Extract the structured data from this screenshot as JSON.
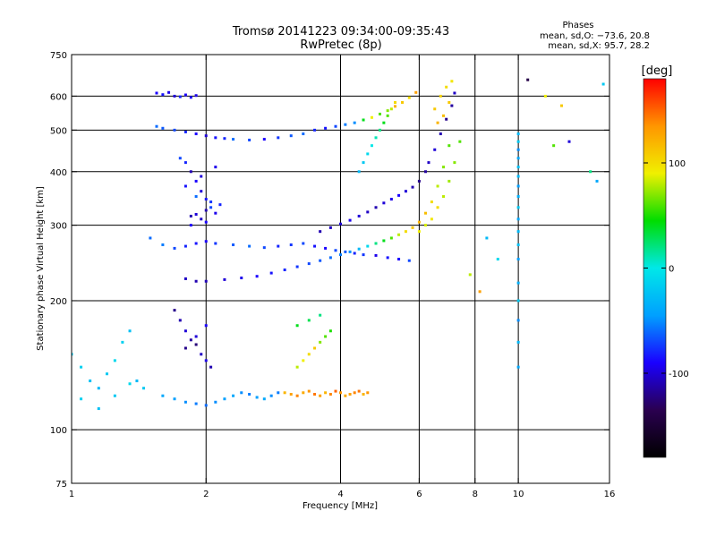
{
  "chart_data": {
    "type": "scatter",
    "title": "Tromsø 20141223 09:34:00-09:35:43",
    "subtitle": "RwPretec (8p)",
    "stats": {
      "heading": "Phases",
      "line_o": "mean, sd,O: −73.6, 20.8",
      "line_x": "mean, sd,X:  95.7, 28.2"
    },
    "xlabel": "Frequency [MHz]",
    "ylabel": "Stationary phase Virtual Height [km]",
    "x_scale": "log",
    "y_scale": "log",
    "xlim": [
      1,
      16
    ],
    "ylim": [
      75,
      750
    ],
    "x_ticks": [
      1,
      2,
      4,
      6,
      8,
      10,
      16
    ],
    "y_ticks": [
      75,
      100,
      200,
      300,
      400,
      500,
      600,
      750
    ],
    "grid_x": [
      2,
      4,
      6,
      8,
      10
    ],
    "grid_y": [
      100,
      200,
      300,
      400,
      500,
      600
    ],
    "grid": true,
    "colorbar": {
      "label": "[deg]",
      "range": [
        -180,
        180
      ],
      "ticks": [
        100,
        0,
        -100
      ],
      "colormap": [
        "#000000",
        "#2a0050",
        "#1a00ff",
        "#00a0ff",
        "#00e8e8",
        "#00dd00",
        "#f0f000",
        "#ff9600",
        "#ff0000"
      ]
    },
    "series": [
      {
        "x": [
          1.55,
          1.6,
          1.65,
          1.7,
          1.75,
          1.8,
          1.85,
          1.9
        ],
        "y": [
          610,
          605,
          612,
          600,
          598,
          604,
          596,
          602
        ],
        "phase": [
          -90,
          -85,
          -95,
          -100,
          -80,
          -92,
          -88,
          -96
        ]
      },
      {
        "x": [
          1.55,
          1.6,
          1.7,
          1.8,
          1.9,
          2.0,
          2.1,
          2.2,
          2.3,
          2.5,
          2.7,
          2.9,
          3.1,
          3.3,
          3.5,
          3.7,
          3.9,
          4.1,
          4.3,
          4.5,
          4.7,
          4.9,
          5.1,
          5.3,
          5.5,
          5.7,
          5.9
        ],
        "y": [
          510,
          505,
          500,
          495,
          490,
          485,
          480,
          478,
          476,
          474,
          476,
          480,
          485,
          490,
          500,
          505,
          510,
          515,
          520,
          528,
          535,
          545,
          555,
          568,
          580,
          595,
          612
        ],
        "phase": [
          -60,
          -65,
          -70,
          -80,
          -90,
          -100,
          -85,
          -80,
          -60,
          -70,
          -90,
          -75,
          -65,
          -60,
          -80,
          -85,
          -70,
          -55,
          -50,
          40,
          90,
          60,
          70,
          120,
          110,
          100,
          130
        ]
      },
      {
        "x": [
          1.8,
          1.85,
          1.9,
          1.95,
          2.0,
          2.05,
          2.1,
          1.85,
          1.95,
          2.0,
          2.05,
          1.9,
          1.8,
          1.95,
          2.1,
          1.75,
          2.0,
          2.15,
          1.85,
          1.9
        ],
        "y": [
          420,
          400,
          380,
          360,
          345,
          330,
          320,
          315,
          310,
          305,
          340,
          350,
          370,
          390,
          410,
          430,
          325,
          335,
          300,
          318
        ],
        "phase": [
          -80,
          -110,
          -90,
          -100,
          -85,
          -70,
          -95,
          -110,
          -105,
          -90,
          -75,
          -60,
          -85,
          -100,
          -95,
          -70,
          -110,
          -80,
          -90,
          -100
        ]
      },
      {
        "x": [
          1.5,
          1.6,
          1.7,
          1.8,
          1.9,
          2.0,
          2.1,
          2.3,
          2.5,
          2.7,
          2.9,
          3.1,
          3.3,
          3.5,
          3.7,
          3.9,
          4.1,
          4.3,
          4.5,
          4.8,
          5.1,
          5.4,
          5.7
        ],
        "y": [
          280,
          270,
          265,
          268,
          272,
          275,
          272,
          270,
          268,
          266,
          268,
          270,
          272,
          268,
          265,
          262,
          260,
          258,
          256,
          255,
          252,
          250,
          248
        ],
        "phase": [
          -60,
          -55,
          -70,
          -80,
          -85,
          -90,
          -75,
          -65,
          -60,
          -70,
          -80,
          -75,
          -70,
          -85,
          -90,
          -70,
          -65,
          -80,
          -75,
          -95,
          -85,
          -90,
          -70
        ]
      },
      {
        "x": [
          1.8,
          1.9,
          2.0,
          2.2,
          2.4,
          2.6,
          2.8,
          3.0,
          3.2,
          3.4,
          3.6,
          3.8,
          4.0,
          4.2,
          4.4,
          4.6,
          4.8,
          5.0,
          5.2,
          5.4,
          5.6,
          5.8,
          6.0,
          6.2,
          6.4,
          6.6,
          6.8,
          7.0
        ],
        "y": [
          225,
          222,
          222,
          224,
          226,
          228,
          232,
          236,
          240,
          244,
          248,
          252,
          256,
          260,
          264,
          268,
          272,
          276,
          280,
          285,
          290,
          296,
          305,
          320,
          340,
          370,
          410,
          460
        ],
        "phase": [
          -105,
          -110,
          -108,
          -100,
          -95,
          -90,
          -85,
          -80,
          -75,
          -70,
          -65,
          -60,
          -55,
          -50,
          -30,
          -10,
          20,
          40,
          60,
          80,
          100,
          110,
          120,
          115,
          100,
          80,
          70,
          60
        ]
      },
      {
        "x": [
          3.6,
          3.8,
          4.0,
          4.2,
          4.4,
          4.6,
          4.8,
          5.0,
          5.2,
          5.4,
          5.6,
          5.8,
          6.0,
          6.2,
          6.3,
          6.5,
          6.7,
          6.9,
          7.1,
          7.2
        ],
        "y": [
          290,
          296,
          302,
          308,
          315,
          322,
          330,
          338,
          345,
          352,
          360,
          368,
          380,
          400,
          420,
          450,
          490,
          530,
          570,
          610
        ],
        "phase": [
          -110,
          -105,
          -100,
          -95,
          -100,
          -105,
          -110,
          -100,
          -95,
          -90,
          -100,
          -110,
          -120,
          -115,
          -105,
          -100,
          -110,
          -120,
          -115,
          -105
        ]
      },
      {
        "x": [
          6.0,
          6.2,
          6.4,
          6.6,
          6.8,
          7.0,
          7.2,
          7.4,
          6.5,
          6.7,
          6.9,
          7.1,
          6.6,
          6.8,
          7.0
        ],
        "y": [
          290,
          300,
          310,
          330,
          350,
          380,
          420,
          470,
          560,
          600,
          630,
          650,
          520,
          540,
          580
        ],
        "phase": [
          90,
          85,
          95,
          100,
          80,
          75,
          70,
          60,
          110,
          105,
          100,
          95,
          120,
          115,
          110
        ]
      },
      {
        "x": [
          3.0,
          3.1,
          3.2,
          3.3,
          3.4,
          3.5,
          3.6,
          3.7,
          3.8,
          3.9,
          4.0,
          4.1,
          4.2,
          4.3,
          4.4,
          4.5,
          4.6
        ],
        "y": [
          122,
          121,
          120,
          122,
          123,
          121,
          120,
          122,
          121,
          123,
          122,
          120,
          121,
          122,
          123,
          121,
          122
        ],
        "phase": [
          120,
          130,
          140,
          125,
          135,
          145,
          130,
          120,
          140,
          150,
          135,
          125,
          130,
          140,
          145,
          120,
          135
        ]
      },
      {
        "x": [
          1.6,
          1.7,
          1.8,
          1.9,
          2.0,
          2.1,
          2.2,
          2.3,
          2.4,
          2.5,
          2.6,
          2.7,
          2.8,
          2.9
        ],
        "y": [
          120,
          118,
          116,
          115,
          114,
          116,
          118,
          120,
          122,
          121,
          119,
          118,
          120,
          122
        ],
        "phase": [
          -40,
          -45,
          -50,
          -55,
          -60,
          -50,
          -45,
          -40,
          -50,
          -55,
          -45,
          -40,
          -50,
          -55
        ]
      },
      {
        "x": [
          1.7,
          1.75,
          1.8,
          1.85,
          1.9,
          1.95,
          2.0,
          2.05,
          1.8,
          1.9,
          2.0
        ],
        "y": [
          190,
          180,
          170,
          162,
          158,
          150,
          145,
          140,
          155,
          165,
          175
        ],
        "phase": [
          -120,
          -110,
          -100,
          -115,
          -125,
          -105,
          -95,
          -110,
          -120,
          -100,
          -90
        ]
      },
      {
        "x": [
          1.0,
          1.05,
          1.1,
          1.15,
          1.2,
          1.25,
          1.3,
          1.35,
          1.4,
          1.45,
          1.05,
          1.15,
          1.25,
          1.35
        ],
        "y": [
          150,
          140,
          130,
          125,
          135,
          145,
          160,
          170,
          130,
          125,
          118,
          112,
          120,
          128
        ],
        "phase": [
          -20,
          -15,
          -25,
          -30,
          -20,
          -10,
          -15,
          -25,
          -30,
          -20,
          -15,
          -25,
          -20,
          -10
        ]
      },
      {
        "x": [
          3.2,
          3.3,
          3.4,
          3.5,
          3.6,
          3.7,
          3.8,
          3.2,
          3.4,
          3.6
        ],
        "y": [
          140,
          145,
          150,
          155,
          160,
          165,
          170,
          175,
          180,
          185
        ],
        "phase": [
          80,
          90,
          100,
          110,
          70,
          60,
          50,
          40,
          30,
          20
        ]
      },
      {
        "x": [
          4.4,
          4.5,
          4.6,
          4.7,
          4.8,
          4.9,
          5.0,
          5.1,
          5.2,
          5.3
        ],
        "y": [
          400,
          420,
          440,
          460,
          480,
          500,
          520,
          540,
          560,
          580
        ],
        "phase": [
          -30,
          -20,
          -10,
          0,
          10,
          20,
          40,
          60,
          80,
          100
        ]
      },
      {
        "x": [
          10.0,
          10.0,
          10.0,
          10.0,
          10.0,
          10.0,
          10.0,
          10.0,
          10.0,
          10.0,
          10.0,
          10.0,
          10.0,
          10.0,
          10.0,
          10.0,
          10.0,
          10.0
        ],
        "y": [
          140,
          160,
          180,
          200,
          220,
          250,
          270,
          290,
          310,
          330,
          350,
          370,
          390,
          410,
          430,
          450,
          470,
          490
        ],
        "phase": [
          -40,
          -30,
          -50,
          -20,
          -35,
          -45,
          -25,
          -30,
          -40,
          -20,
          -35,
          -45,
          -30,
          -25,
          -40,
          -50,
          -20,
          -30
        ]
      },
      {
        "x": [
          10.5,
          11.5,
          12.5,
          14.5,
          15.5,
          12.0,
          13.0,
          9.0,
          8.5,
          8.2,
          7.8,
          15.0
        ],
        "y": [
          655,
          600,
          570,
          400,
          640,
          460,
          470,
          250,
          280,
          210,
          230,
          380
        ],
        "phase": [
          -140,
          90,
          110,
          20,
          -20,
          60,
          -100,
          -10,
          -30,
          130,
          80,
          -40
        ]
      }
    ]
  }
}
